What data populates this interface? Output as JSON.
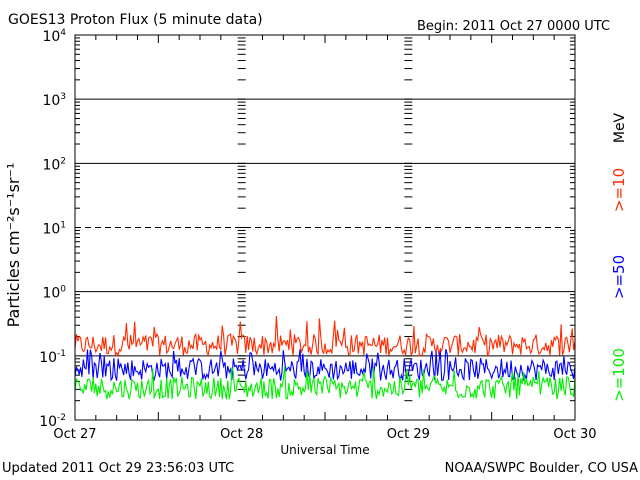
{
  "chart_data": {
    "type": "line",
    "title": "GOES13 Proton Flux (5 minute data)",
    "begin_label": "Begin: 2011 Oct 27 0000 UTC",
    "xlabel": "Universal Time",
    "ylabel": "Particles cm⁻²s⁻¹sr⁻¹",
    "yscale": "log",
    "ylim": [
      0.01,
      10000
    ],
    "x_ticks": [
      "Oct 27",
      "Oct 28",
      "Oct 29",
      "Oct 30"
    ],
    "y_ticks": [
      {
        "base": "10",
        "exp": "-2"
      },
      {
        "base": "10",
        "exp": "-1"
      },
      {
        "base": "10",
        "exp": "0"
      },
      {
        "base": "10",
        "exp": "1"
      },
      {
        "base": "10",
        "exp": "2"
      },
      {
        "base": "10",
        "exp": "3"
      },
      {
        "base": "10",
        "exp": "4"
      }
    ],
    "unit_label": "MeV",
    "series": [
      {
        "name": ">=10",
        "color": "#ff2a00",
        "typical": 0.13,
        "low": 0.09,
        "high": 0.42
      },
      {
        "name": ">=50",
        "color": "#0000ff",
        "typical": 0.06,
        "low": 0.035,
        "high": 0.13
      },
      {
        "name": ">=100",
        "color": "#00ee00",
        "typical": 0.03,
        "low": 0.018,
        "high": 0.07
      }
    ],
    "grid": true
  },
  "footer": {
    "updated": "Updated 2011 Oct 29 23:56:03 UTC",
    "source": "NOAA/SWPC Boulder, CO USA"
  }
}
